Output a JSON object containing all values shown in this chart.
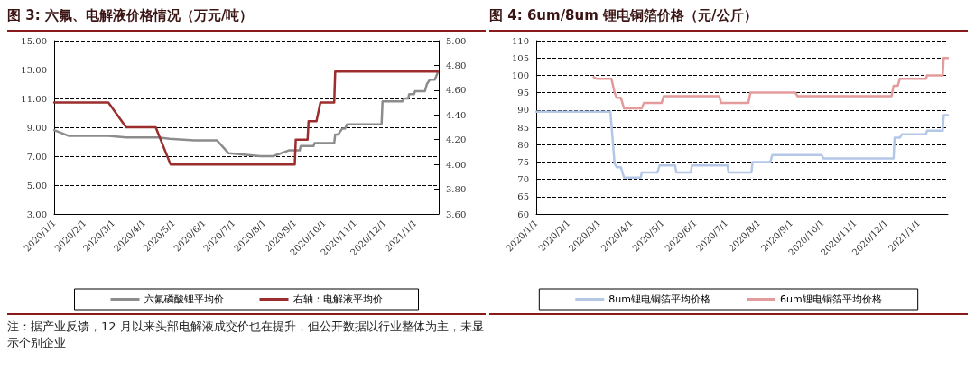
{
  "chart_data": [
    {
      "type": "line",
      "title": "图 3:  六氟、电解液价格情况（万元/吨）",
      "xlim": [
        "2020-01-01",
        "2021-01-25"
      ],
      "xticks": [
        {
          "value": "2020-01-01",
          "label": "2020/1/1"
        },
        {
          "value": "2020-02-01",
          "label": "2020/2/1"
        },
        {
          "value": "2020-03-01",
          "label": "2020/3/1"
        },
        {
          "value": "2020-04-01",
          "label": "2020/4/1"
        },
        {
          "value": "2020-05-01",
          "label": "2020/5/1"
        },
        {
          "value": "2020-06-01",
          "label": "2020/6/1"
        },
        {
          "value": "2020-07-01",
          "label": "2020/7/1"
        },
        {
          "value": "2020-08-01",
          "label": "2020/8/1"
        },
        {
          "value": "2020-09-01",
          "label": "2020/9/1"
        },
        {
          "value": "2020-10-01",
          "label": "2020/10/1"
        },
        {
          "value": "2020-11-01",
          "label": "2020/11/1"
        },
        {
          "value": "2020-12-01",
          "label": "2020/12/1"
        },
        {
          "value": "2021-01-01",
          "label": "2021/1/1"
        }
      ],
      "ylim": [
        3,
        15
      ],
      "yticks": [
        {
          "value": 3,
          "label": "3.00"
        },
        {
          "value": 5,
          "label": "5.00"
        },
        {
          "value": 7,
          "label": "7.00"
        },
        {
          "value": 9,
          "label": "9.00"
        },
        {
          "value": 11,
          "label": "11.00"
        },
        {
          "value": 13,
          "label": "13.00"
        },
        {
          "value": 15,
          "label": "15.00"
        }
      ],
      "y2lim": [
        3.6,
        5
      ],
      "y2ticks": [
        {
          "value": 3.6,
          "label": "3.60"
        },
        {
          "value": 3.8,
          "label": "3.80"
        },
        {
          "value": 4,
          "label": "4.00"
        },
        {
          "value": 4.2,
          "label": "4.20"
        },
        {
          "value": 4.4,
          "label": "4.40"
        },
        {
          "value": 4.6,
          "label": "4.60"
        },
        {
          "value": 4.8,
          "label": "4.80"
        },
        {
          "value": 5,
          "label": "5.00"
        }
      ],
      "grid": "y",
      "legend": "bottom",
      "marker": "none",
      "line_style": "solid",
      "series": [
        {
          "name": "六氟磷酸锂平均价",
          "color": "#8c8c8c",
          "x": [
            "2020-01-01",
            "2020-01-16",
            "2020-02-25",
            "2020-03-14",
            "2020-04-16",
            "2020-04-27",
            "2020-05-22",
            "2020-06-14",
            "2020-06-26",
            "2020-07-28",
            "2020-08-10",
            "2020-08-26",
            "2020-09-06",
            "2020-09-07",
            "2020-09-20",
            "2020-09-21",
            "2020-10-11",
            "2020-10-12",
            "2020-10-15",
            "2020-10-19",
            "2020-10-22",
            "2020-10-24",
            "2020-11-28",
            "2020-11-29",
            "2020-12-19",
            "2020-12-21",
            "2020-12-25",
            "2020-12-26",
            "2020-12-31",
            "2021-01-01",
            "2021-01-11",
            "2021-01-13",
            "2021-01-16",
            "2021-01-21",
            "2021-01-24"
          ],
          "values": [
            8.8,
            8.4,
            8.4,
            8.3,
            8.3,
            8.2,
            8.1,
            8.1,
            7.2,
            7.0,
            7.0,
            7.4,
            7.4,
            7.7,
            7.7,
            7.9,
            7.9,
            8.5,
            8.5,
            8.9,
            8.9,
            9.2,
            9.2,
            10.8,
            10.8,
            11.0,
            11.0,
            11.3,
            11.3,
            11.5,
            11.5,
            12.0,
            12.3,
            12.3,
            12.8
          ]
        },
        {
          "name": "右轴：电解液平均价",
          "color": "#9b2d2d",
          "axis": "y2",
          "x": [
            "2020-01-01",
            "2020-02-25",
            "2020-03-14",
            "2020-04-13",
            "2020-04-28",
            "2020-09-01",
            "2020-09-02",
            "2020-09-14",
            "2020-09-15",
            "2020-09-23",
            "2020-09-27",
            "2020-10-11",
            "2020-10-12",
            "2021-01-24"
          ],
          "values": [
            4.5,
            4.5,
            4.3,
            4.3,
            4.0,
            4.0,
            4.2,
            4.2,
            4.35,
            4.35,
            4.5,
            4.5,
            4.75,
            4.75
          ]
        }
      ],
      "annotations": [
        "注：据产业反馈，12 月以来头部电解液成交价也在提升，但公开数据以行业整体为主，未显示个别企业"
      ]
    },
    {
      "type": "line",
      "title": "图 4:  6um/8um 锂电铜箔价格（元/公斤）",
      "xlim": [
        "2020-01-01",
        "2021-01-29"
      ],
      "xticks": [
        {
          "value": "2020-01-01",
          "label": "2020/1/1"
        },
        {
          "value": "2020-02-01",
          "label": "2020/2/1"
        },
        {
          "value": "2020-03-01",
          "label": "2020/3/1"
        },
        {
          "value": "2020-04-01",
          "label": "2020/4/1"
        },
        {
          "value": "2020-05-01",
          "label": "2020/5/1"
        },
        {
          "value": "2020-06-01",
          "label": "2020/6/1"
        },
        {
          "value": "2020-07-01",
          "label": "2020/7/1"
        },
        {
          "value": "2020-08-01",
          "label": "2020/8/1"
        },
        {
          "value": "2020-09-01",
          "label": "2020/9/1"
        },
        {
          "value": "2020-10-01",
          "label": "2020/10/1"
        },
        {
          "value": "2020-11-01",
          "label": "2020/11/1"
        },
        {
          "value": "2020-12-01",
          "label": "2020/12/1"
        },
        {
          "value": "2021-01-01",
          "label": "2021/1/1"
        }
      ],
      "ylim": [
        60,
        110
      ],
      "yticks": [
        60,
        65,
        70,
        75,
        80,
        85,
        90,
        95,
        100,
        105,
        110
      ],
      "grid": "y",
      "legend": "bottom",
      "marker": "none",
      "line_style": "solid",
      "series": [
        {
          "name": "8um锂电铜箔平均价格",
          "color": "#b4c7e7",
          "x": [
            "2020-01-01",
            "2020-03-12",
            "2020-03-16",
            "2020-03-18",
            "2020-03-22",
            "2020-03-25",
            "2020-04-10",
            "2020-04-11",
            "2020-04-26",
            "2020-04-28",
            "2020-05-13",
            "2020-05-14",
            "2020-05-28",
            "2020-05-29",
            "2020-07-02",
            "2020-07-03",
            "2020-07-25",
            "2020-07-26",
            "2020-08-12",
            "2020-08-14",
            "2020-09-30",
            "2020-10-02",
            "2020-12-08",
            "2020-12-09",
            "2020-12-14",
            "2020-12-16",
            "2021-01-08",
            "2021-01-09",
            "2021-01-24",
            "2021-01-25",
            "2021-01-29"
          ],
          "values": [
            89.5,
            89.5,
            74.5,
            73.5,
            73.5,
            70.5,
            70.5,
            72,
            72,
            74,
            74,
            72,
            72,
            74,
            74,
            72,
            72,
            75,
            75,
            77,
            77,
            76,
            76,
            82,
            82,
            83,
            83,
            84,
            84,
            88.5,
            88.5
          ]
        },
        {
          "name": "6um锂电铜箔平均价格",
          "color": "#e39b9b",
          "x": [
            "2020-02-25",
            "2020-02-28",
            "2020-03-13",
            "2020-03-16",
            "2020-03-18",
            "2020-03-22",
            "2020-03-25",
            "2020-04-11",
            "2020-04-13",
            "2020-04-30",
            "2020-05-02",
            "2020-06-24",
            "2020-06-26",
            "2020-07-22",
            "2020-07-24",
            "2020-09-05",
            "2020-09-07",
            "2020-12-06",
            "2020-12-08",
            "2020-12-12",
            "2020-12-14",
            "2021-01-08",
            "2021-01-09",
            "2021-01-24",
            "2021-01-25",
            "2021-01-29"
          ],
          "values": [
            99.5,
            99,
            99,
            95,
            93.5,
            93.5,
            90.5,
            90.5,
            92,
            92,
            94,
            94,
            92,
            92,
            95,
            95,
            94,
            94,
            97,
            97,
            99,
            99,
            100,
            100,
            105,
            105
          ]
        }
      ]
    }
  ]
}
